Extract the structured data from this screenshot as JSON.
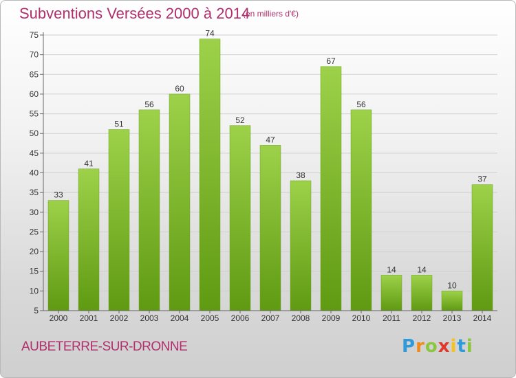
{
  "chart_data": {
    "type": "bar",
    "title": "Subventions Versées 2000 à 2014",
    "subtitle": "(en milliers d'€)",
    "categories": [
      "2000",
      "2001",
      "2002",
      "2003",
      "2004",
      "2005",
      "2006",
      "2007",
      "2008",
      "2009",
      "2010",
      "2011",
      "2012",
      "2013",
      "2014"
    ],
    "values": [
      33,
      41,
      51,
      56,
      60,
      74,
      52,
      47,
      38,
      67,
      56,
      14,
      14,
      10,
      37
    ],
    "ylim": [
      5,
      75
    ],
    "yticks": [
      5,
      10,
      15,
      20,
      25,
      30,
      35,
      40,
      45,
      50,
      55,
      60,
      65,
      70,
      75
    ],
    "grid": true,
    "colors": {
      "bar_top": "#9dd14a",
      "bar_bottom": "#5f9a12",
      "title": "#b0306e"
    }
  },
  "commune": "AUBETERRE-SUR-DRONNE",
  "logo": {
    "letters": [
      "P",
      "r",
      "o",
      "x",
      "i",
      "t",
      "i"
    ],
    "colors": [
      "#2d9bd9",
      "#f08a1c",
      "#8cc63f",
      "#e0382c",
      "#f7c21b",
      "#2d9bd9",
      "#8cc63f"
    ]
  }
}
